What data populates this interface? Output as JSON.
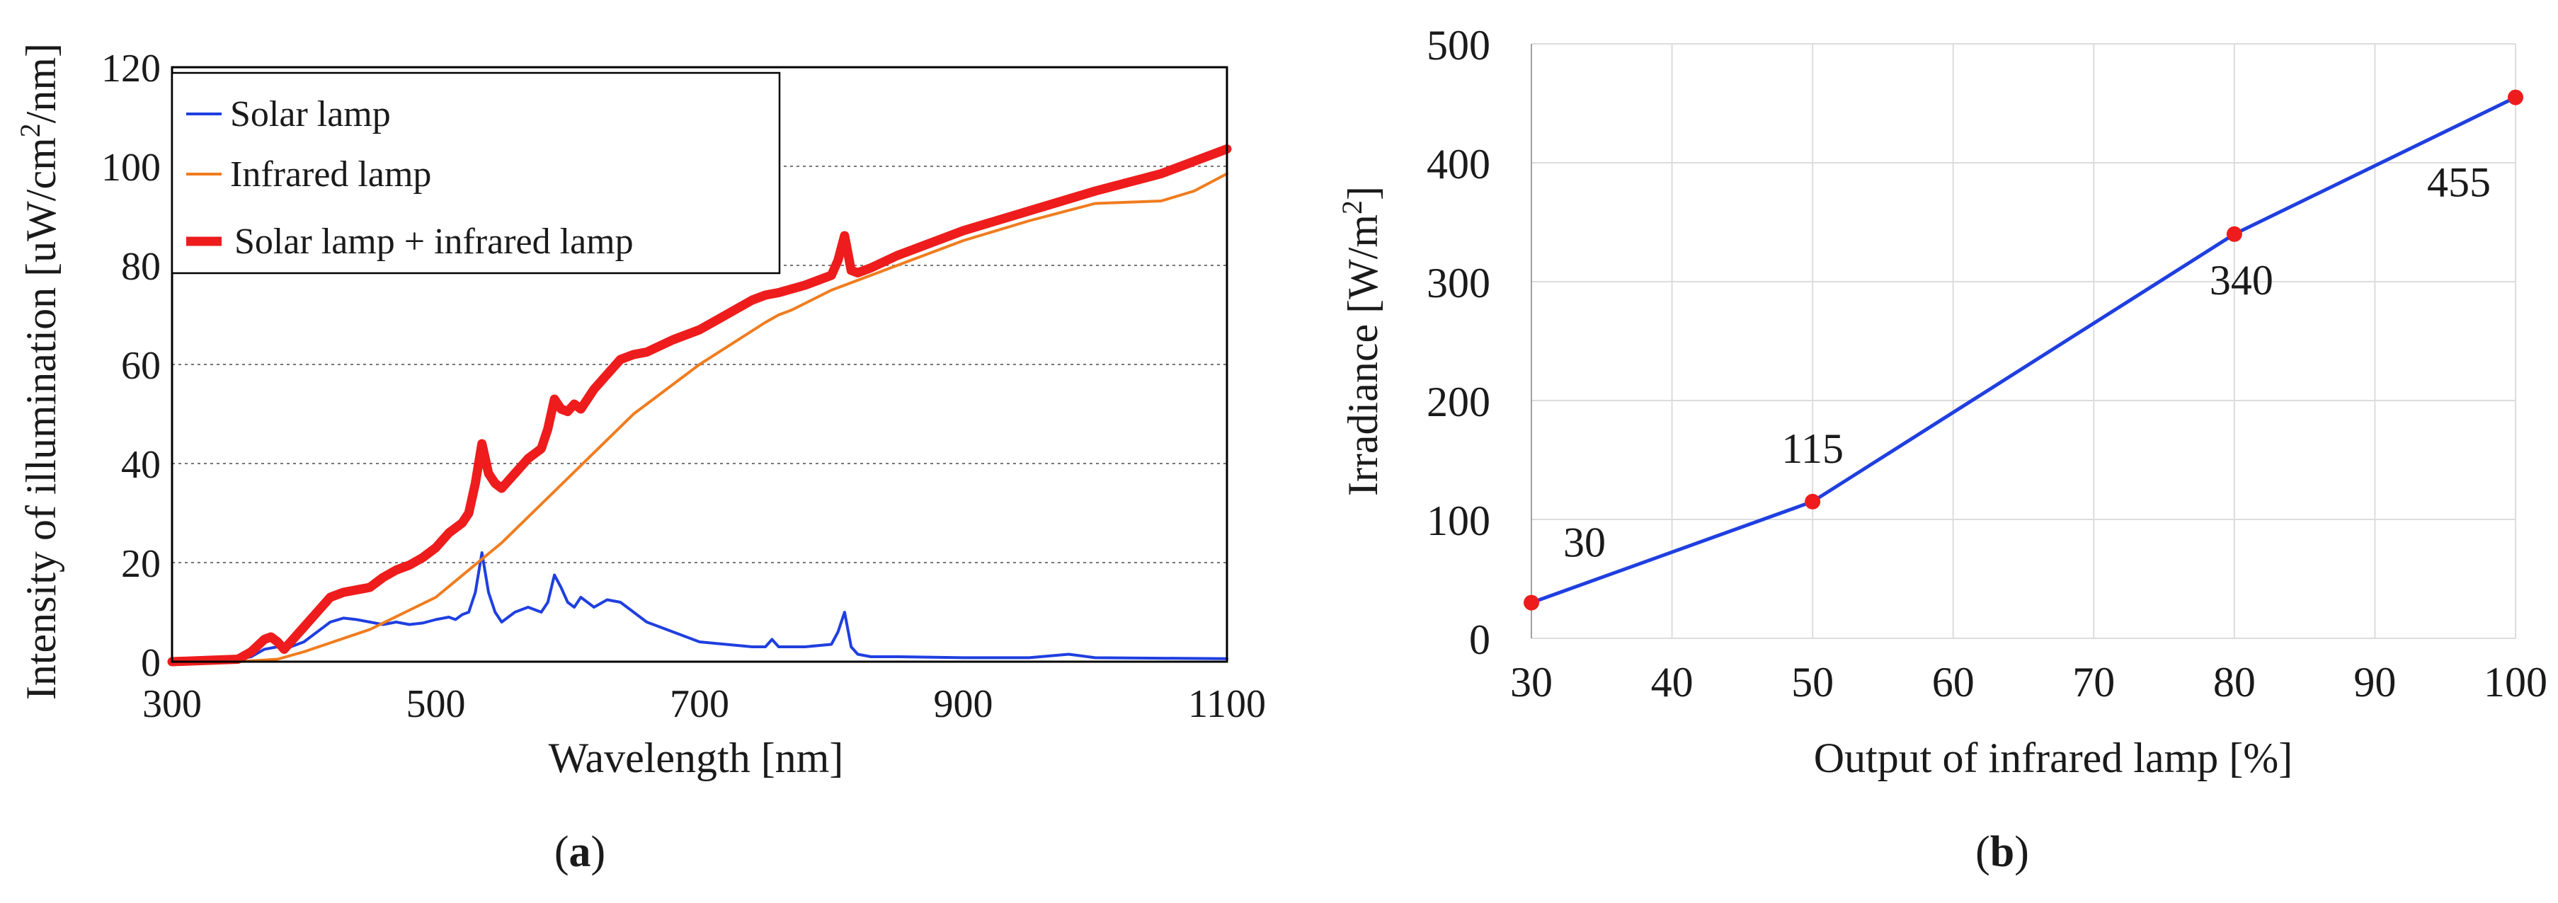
{
  "colors": {
    "solar": "#1f3fe0",
    "infrared": "#f07c1e",
    "combined": "#ee1c1c",
    "line_b": "#1f3fe0",
    "markers_b": "#ee1c1c",
    "grid_a": "#777777",
    "grid_b": "#dcdcdc"
  },
  "chart_data": [
    {
      "type": "line",
      "panel_label": "(a)",
      "panel_letter": "a",
      "xlabel": "Wavelength [nm]",
      "ylabel": "Intensity of illumination [uW/cm²/nm]",
      "ylabel_parts": [
        "Intensity of illumination [uW/cm",
        "2",
        "/nm]"
      ],
      "xlim": [
        300,
        1100
      ],
      "ylim": [
        0,
        120
      ],
      "xticks": [
        300,
        500,
        700,
        900,
        1100
      ],
      "yticks": [
        0,
        20,
        40,
        60,
        80,
        100,
        120
      ],
      "grid": "horizontal dotted",
      "legend_position": "top-left",
      "series": [
        {
          "name": "Solar lamp",
          "x": [
            300,
            350,
            360,
            370,
            380,
            390,
            400,
            410,
            420,
            430,
            440,
            450,
            460,
            470,
            480,
            490,
            500,
            510,
            515,
            520,
            525,
            530,
            535,
            540,
            545,
            550,
            555,
            560,
            570,
            580,
            585,
            590,
            595,
            600,
            605,
            610,
            620,
            630,
            640,
            650,
            660,
            680,
            700,
            720,
            740,
            750,
            755,
            760,
            780,
            800,
            805,
            810,
            815,
            820,
            830,
            850,
            900,
            950,
            980,
            1000,
            1050,
            1100
          ],
          "y": [
            0,
            0.5,
            1,
            2.5,
            3,
            3,
            4,
            6,
            8,
            8.8,
            8.5,
            8,
            7.5,
            8,
            7.5,
            7.8,
            8.5,
            9,
            8.5,
            9.5,
            10,
            14,
            22,
            14,
            10,
            8,
            9,
            10,
            11,
            10,
            12,
            17.5,
            15,
            12,
            11,
            13,
            11,
            12.5,
            12,
            10,
            8,
            6,
            4,
            3.5,
            3,
            3,
            4.5,
            3,
            3,
            3.5,
            6,
            10,
            3,
            1.5,
            1,
            1,
            0.8,
            0.8,
            1.5,
            0.8,
            0.7,
            0.6
          ]
        },
        {
          "name": "Infrared lamp",
          "x": [
            300,
            350,
            380,
            400,
            450,
            500,
            550,
            600,
            650,
            700,
            750,
            760,
            770,
            800,
            850,
            900,
            950,
            1000,
            1050,
            1075,
            1100
          ],
          "y": [
            0,
            0,
            0.5,
            2,
            6.5,
            13,
            24,
            37,
            50,
            60,
            68.5,
            70,
            71,
            75,
            80,
            85,
            89,
            92.5,
            93,
            95,
            98.5
          ]
        },
        {
          "name": "Solar lamp + infrared lamp",
          "x": [
            300,
            350,
            360,
            370,
            375,
            380,
            385,
            390,
            400,
            410,
            420,
            430,
            440,
            450,
            460,
            470,
            480,
            490,
            500,
            510,
            520,
            525,
            530,
            535,
            540,
            545,
            550,
            555,
            560,
            570,
            580,
            585,
            590,
            595,
            600,
            605,
            610,
            620,
            630,
            640,
            650,
            660,
            680,
            700,
            720,
            740,
            750,
            760,
            780,
            800,
            805,
            810,
            815,
            820,
            830,
            850,
            900,
            950,
            1000,
            1050,
            1100
          ],
          "y": [
            0,
            0.5,
            2,
            4.5,
            5,
            4,
            2.5,
            4,
            7,
            10,
            13,
            14,
            14.5,
            15,
            17,
            18.5,
            19.5,
            21,
            23,
            26,
            28,
            30,
            36,
            44,
            38,
            36,
            35,
            36.5,
            38,
            41,
            43,
            47,
            53,
            51,
            50.5,
            52,
            51,
            55,
            58,
            61,
            62,
            62.5,
            65,
            67,
            70,
            73,
            74,
            74.5,
            76,
            78,
            81,
            86,
            79,
            78.5,
            79.5,
            82,
            87,
            91,
            95,
            98.5,
            103.5
          ]
        }
      ]
    },
    {
      "type": "line",
      "panel_label": "(b)",
      "panel_letter": "b",
      "xlabel": "Output of infrared lamp [%]",
      "ylabel": "Irradiance [W/m²]",
      "ylabel_parts": [
        "Irradiance [W/m",
        "2",
        "]"
      ],
      "xlim": [
        30,
        100
      ],
      "ylim": [
        0,
        500
      ],
      "xticks": [
        30,
        40,
        50,
        60,
        70,
        80,
        90,
        100
      ],
      "yticks": [
        0,
        100,
        200,
        300,
        400,
        500
      ],
      "grid": "both",
      "series": [
        {
          "x": [
            30,
            50,
            80,
            100
          ],
          "y": [
            30,
            115,
            340,
            455
          ],
          "labels": [
            "30",
            "115",
            "340",
            "455"
          ]
        }
      ]
    }
  ]
}
